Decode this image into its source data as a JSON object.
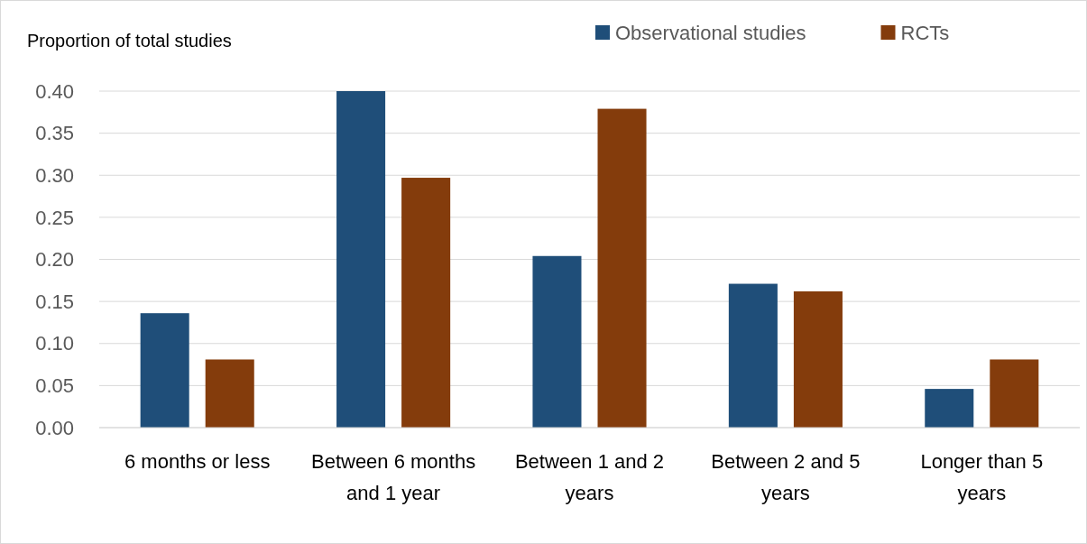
{
  "chart_data": {
    "type": "bar",
    "ylabel": "Proportion of total studies",
    "categories": [
      "6 months or less",
      "Between 6 months and 1 year",
      "Between 1 and 2 years",
      "Between 2 and 5 years",
      "Longer than 5 years"
    ],
    "series": [
      {
        "name": "Observational studies",
        "color": "#1f4e79",
        "values": [
          0.136,
          0.4,
          0.204,
          0.171,
          0.046
        ]
      },
      {
        "name": "RCTs",
        "color": "#843c0c",
        "values": [
          0.081,
          0.297,
          0.379,
          0.162,
          0.081
        ]
      }
    ],
    "ylim": [
      0,
      0.4
    ],
    "yticks": [
      {
        "value": 0,
        "label": "0.00"
      },
      {
        "value": 0.05,
        "label": "0.05"
      },
      {
        "value": 0.1,
        "label": "0.10"
      },
      {
        "value": 0.15,
        "label": "0.15"
      },
      {
        "value": 0.2,
        "label": "0.20"
      },
      {
        "value": 0.25,
        "label": "0.25"
      },
      {
        "value": 0.3,
        "label": "0.30"
      },
      {
        "value": 0.35,
        "label": "0.35"
      },
      {
        "value": 0.4,
        "label": "0.40"
      }
    ],
    "grid": "y",
    "legend": "top right"
  }
}
